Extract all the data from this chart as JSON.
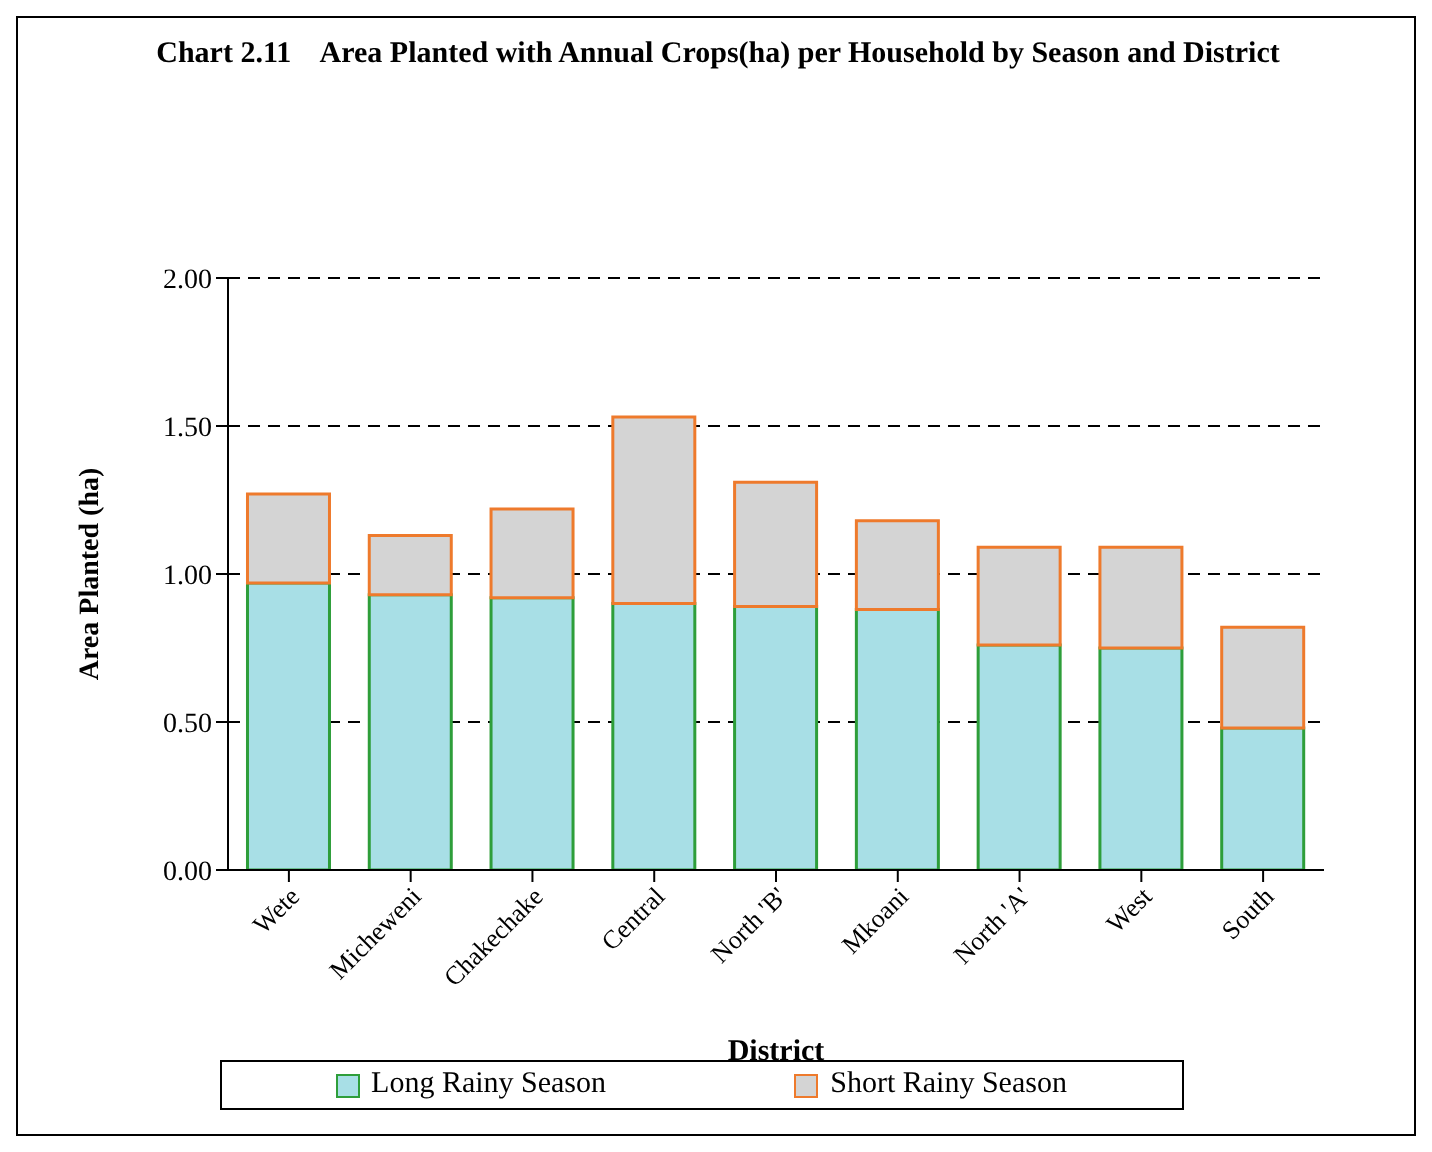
{
  "chart_data": {
    "type": "bar",
    "title": "Chart 2.11    Area Planted with Annual Crops(ha) per Household by Season and District",
    "xlabel": "District",
    "ylabel": "Area Planted (ha)",
    "categories": [
      "Wete",
      "Micheweni",
      "Chakechake",
      "Central",
      "North 'B'",
      "Mkoani",
      "North 'A'",
      "West",
      "South"
    ],
    "series": [
      {
        "name": "Long Rainy Season",
        "color": "#a8dfe6",
        "values": [
          0.97,
          0.93,
          0.92,
          0.9,
          0.89,
          0.88,
          0.76,
          0.75,
          0.48
        ]
      },
      {
        "name": "Short Rainy Season",
        "color": "#d4d4d4",
        "values": [
          0.3,
          0.2,
          0.3,
          0.63,
          0.42,
          0.3,
          0.33,
          0.34,
          0.34
        ]
      }
    ],
    "stacked": true,
    "ylim": [
      0,
      2
    ],
    "yticks": [
      {
        "value": 0,
        "label": "0.00"
      },
      {
        "value": 0.5,
        "label": "0.50"
      },
      {
        "value": 1,
        "label": "1.00"
      },
      {
        "value": 1.5,
        "label": "1.50"
      },
      {
        "value": 2,
        "label": "2.00"
      }
    ],
    "grid": "y",
    "legend": "bottom"
  }
}
